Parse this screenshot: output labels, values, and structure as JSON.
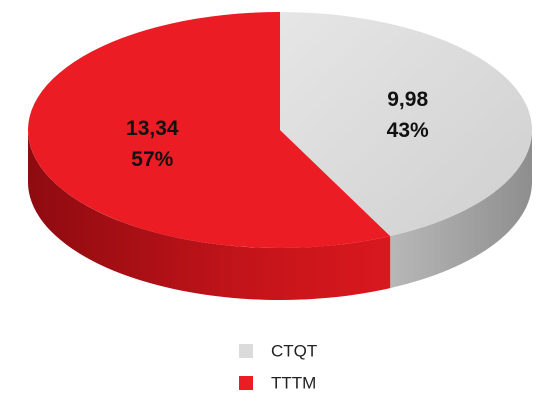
{
  "chart_data": {
    "type": "pie3d",
    "categories": [
      "CTQT",
      "TTTM"
    ],
    "values": [
      9.98,
      13.34
    ],
    "value_labels": [
      "9,98",
      "13,34"
    ],
    "percent_labels": [
      "43%",
      "57%"
    ],
    "colors": [
      "#dcdbdb",
      "#ec1c24"
    ],
    "legend": "bottom"
  }
}
